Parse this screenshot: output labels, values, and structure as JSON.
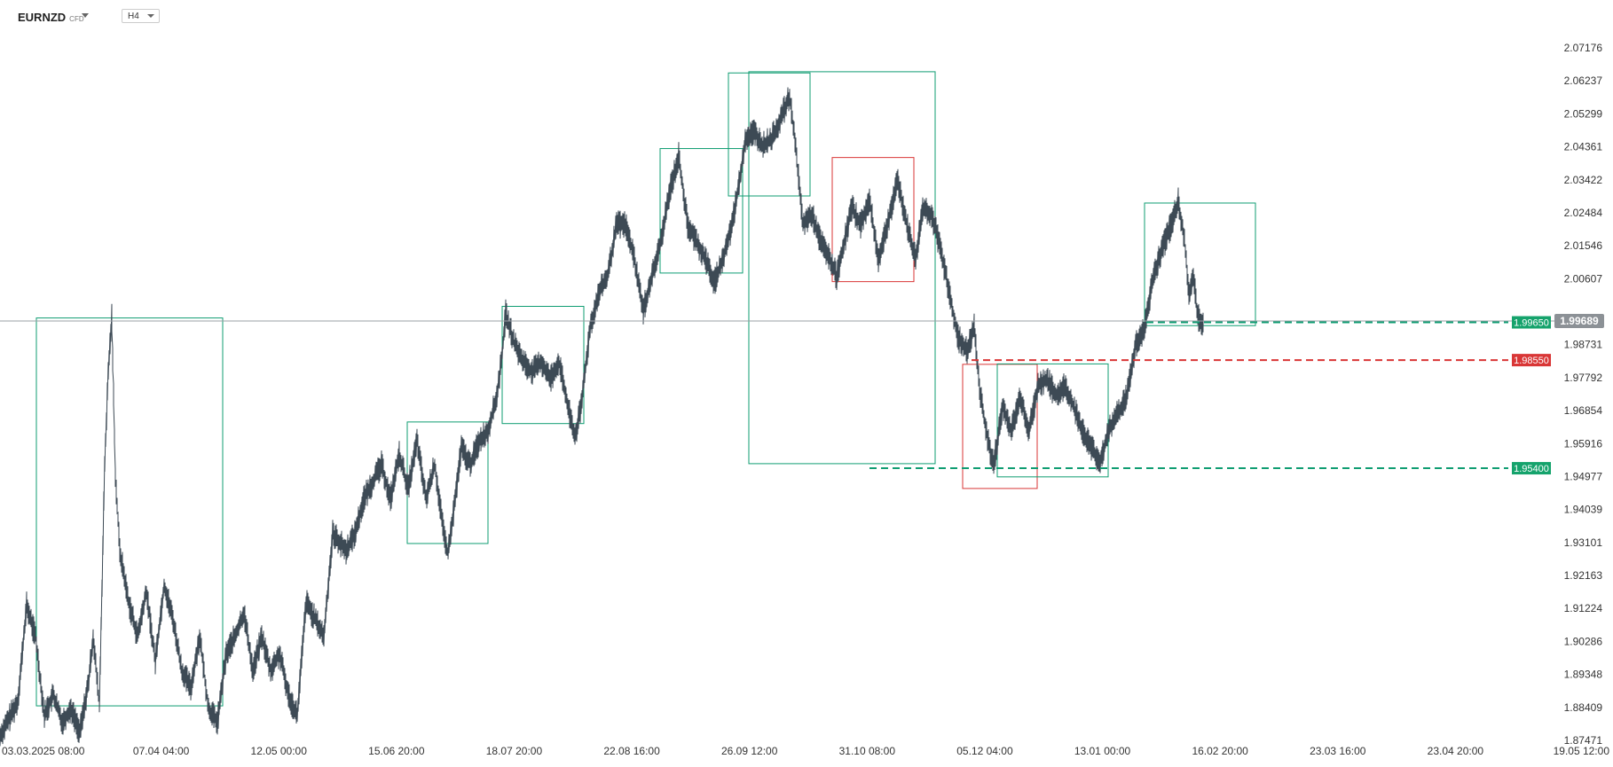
{
  "toolbar": {
    "symbol": "EURNZD",
    "symbol_type": "CFD",
    "timeframe": "H4"
  },
  "colors": {
    "candle": "#3d4a55",
    "green": "#0f9d72",
    "green_badge": "#15a36c",
    "red": "#d93636",
    "current_line": "#9aa0a6",
    "current_badge": "#8c9196"
  },
  "chart_data": {
    "type": "line",
    "ylim": [
      1.87471,
      2.07646
    ],
    "y_ticks": [
      "2.07176",
      "2.06237",
      "2.05299",
      "2.04361",
      "2.03422",
      "2.02484",
      "2.01546",
      "2.00607",
      "1.99689",
      "1.98731",
      "1.97792",
      "1.96854",
      "1.95916",
      "1.94977",
      "1.94039",
      "1.93101",
      "1.92163",
      "1.91224",
      "1.90286",
      "1.89348",
      "1.88409",
      "1.87471"
    ],
    "x_ticks": [
      "03.03.2025 08:00",
      "07.04 04:00",
      "12.05 00:00",
      "15.06 20:00",
      "18.07 20:00",
      "22.08 16:00",
      "26.09 12:00",
      "31.10 08:00",
      "05.12 04:00",
      "13.01 00:00",
      "16.02 20:00",
      "23.03 16:00",
      "23.04 20:00",
      "19.05 12:00"
    ],
    "current_price": "1.99689",
    "price_series": [
      [
        0,
        1.876
      ],
      [
        20,
        1.886
      ],
      [
        30,
        1.914
      ],
      [
        40,
        1.905
      ],
      [
        50,
        1.882
      ],
      [
        60,
        1.888
      ],
      [
        70,
        1.88
      ],
      [
        80,
        1.884
      ],
      [
        90,
        1.877
      ],
      [
        100,
        1.892
      ],
      [
        105,
        1.905
      ],
      [
        112,
        1.885
      ],
      [
        118,
        1.955
      ],
      [
        122,
        1.982
      ],
      [
        126,
        1.998
      ],
      [
        130,
        1.952
      ],
      [
        135,
        1.93
      ],
      [
        145,
        1.915
      ],
      [
        155,
        1.905
      ],
      [
        165,
        1.918
      ],
      [
        175,
        1.898
      ],
      [
        185,
        1.92
      ],
      [
        195,
        1.91
      ],
      [
        205,
        1.895
      ],
      [
        215,
        1.89
      ],
      [
        225,
        1.905
      ],
      [
        235,
        1.884
      ],
      [
        245,
        1.88
      ],
      [
        255,
        1.9
      ],
      [
        265,
        1.905
      ],
      [
        275,
        1.912
      ],
      [
        285,
        1.895
      ],
      [
        295,
        1.905
      ],
      [
        305,
        1.895
      ],
      [
        315,
        1.9
      ],
      [
        325,
        1.888
      ],
      [
        335,
        1.882
      ],
      [
        345,
        1.915
      ],
      [
        355,
        1.91
      ],
      [
        365,
        1.905
      ],
      [
        375,
        1.935
      ],
      [
        390,
        1.93
      ],
      [
        400,
        1.935
      ],
      [
        410,
        1.945
      ],
      [
        420,
        1.95
      ],
      [
        430,
        1.955
      ],
      [
        440,
        1.945
      ],
      [
        450,
        1.958
      ],
      [
        460,
        1.948
      ],
      [
        470,
        1.962
      ],
      [
        480,
        1.945
      ],
      [
        490,
        1.955
      ],
      [
        500,
        1.935
      ],
      [
        505,
        1.929
      ],
      [
        512,
        1.943
      ],
      [
        520,
        1.96
      ],
      [
        530,
        1.955
      ],
      [
        540,
        1.962
      ],
      [
        550,
        1.965
      ],
      [
        560,
        1.975
      ],
      [
        565,
        1.985
      ],
      [
        570,
        1.999
      ],
      [
        580,
        1.99
      ],
      [
        590,
        1.985
      ],
      [
        600,
        1.982
      ],
      [
        610,
        1.985
      ],
      [
        620,
        1.98
      ],
      [
        630,
        1.985
      ],
      [
        640,
        1.972
      ],
      [
        648,
        1.963
      ],
      [
        655,
        1.972
      ],
      [
        665,
        1.995
      ],
      [
        675,
        2.005
      ],
      [
        685,
        2.01
      ],
      [
        695,
        2.025
      ],
      [
        705,
        2.025
      ],
      [
        715,
        2.015
      ],
      [
        725,
        2.0
      ],
      [
        735,
        2.01
      ],
      [
        745,
        2.02
      ],
      [
        755,
        2.035
      ],
      [
        765,
        2.045
      ],
      [
        775,
        2.025
      ],
      [
        785,
        2.02
      ],
      [
        795,
        2.015
      ],
      [
        805,
        2.008
      ],
      [
        815,
        2.015
      ],
      [
        825,
        2.025
      ],
      [
        835,
        2.04
      ],
      [
        840,
        2.05
      ],
      [
        850,
        2.052
      ],
      [
        860,
        2.048
      ],
      [
        870,
        2.05
      ],
      [
        880,
        2.056
      ],
      [
        890,
        2.062
      ],
      [
        895,
        2.052
      ],
      [
        905,
        2.025
      ],
      [
        915,
        2.028
      ],
      [
        925,
        2.02
      ],
      [
        935,
        2.015
      ],
      [
        943,
        2.01
      ],
      [
        950,
        2.018
      ],
      [
        960,
        2.03
      ],
      [
        970,
        2.025
      ],
      [
        980,
        2.032
      ],
      [
        990,
        2.015
      ],
      [
        1000,
        2.025
      ],
      [
        1012,
        2.038
      ],
      [
        1022,
        2.025
      ],
      [
        1032,
        2.015
      ],
      [
        1040,
        2.03
      ],
      [
        1050,
        2.028
      ],
      [
        1060,
        2.018
      ],
      [
        1070,
        2.005
      ],
      [
        1080,
        1.992
      ],
      [
        1090,
        1.988
      ],
      [
        1098,
        1.995
      ],
      [
        1105,
        1.975
      ],
      [
        1115,
        1.96
      ],
      [
        1120,
        1.955
      ],
      [
        1130,
        1.972
      ],
      [
        1140,
        1.965
      ],
      [
        1150,
        1.975
      ],
      [
        1160,
        1.965
      ],
      [
        1170,
        1.978
      ],
      [
        1180,
        1.98
      ],
      [
        1190,
        1.975
      ],
      [
        1200,
        1.978
      ],
      [
        1210,
        1.972
      ],
      [
        1220,
        1.965
      ],
      [
        1230,
        1.96
      ],
      [
        1240,
        1.956
      ],
      [
        1250,
        1.965
      ],
      [
        1260,
        1.97
      ],
      [
        1270,
        1.975
      ],
      [
        1280,
        1.99
      ],
      [
        1290,
        1.995
      ],
      [
        1300,
        2.01
      ],
      [
        1310,
        2.018
      ],
      [
        1320,
        2.025
      ],
      [
        1328,
        2.032
      ],
      [
        1335,
        2.02
      ],
      [
        1340,
        2.005
      ],
      [
        1345,
        2.01
      ],
      [
        1350,
        1.998
      ],
      [
        1357,
        1.996
      ]
    ],
    "boxes": [
      {
        "x0": 41,
        "x1": 251,
        "y_top": 1.99778,
        "y_bottom": 1.88477,
        "color": "green"
      },
      {
        "x0": 459,
        "x1": 550,
        "y_top": 1.96748,
        "y_bottom": 1.93207,
        "color": "green"
      },
      {
        "x0": 566,
        "x1": 658,
        "y_top": 2.00116,
        "y_bottom": 1.96701,
        "color": "green"
      },
      {
        "x0": 744,
        "x1": 837,
        "y_top": 2.04713,
        "y_bottom": 2.01087,
        "color": "green"
      },
      {
        "x0": 821,
        "x1": 913,
        "y_top": 2.06916,
        "y_bottom": 2.03332,
        "color": "green"
      },
      {
        "x0": 844,
        "x1": 1054,
        "y_top": 2.06951,
        "y_bottom": 1.95533,
        "color": "green"
      },
      {
        "x0": 938,
        "x1": 1030,
        "y_top": 2.04452,
        "y_bottom": 2.00836,
        "color": "red"
      },
      {
        "x0": 1085,
        "x1": 1169,
        "y_top": 1.98427,
        "y_bottom": 1.9481,
        "color": "red"
      },
      {
        "x0": 1124,
        "x1": 1249,
        "y_top": 1.98439,
        "y_bottom": 1.95148,
        "color": "green"
      },
      {
        "x0": 1290,
        "x1": 1415,
        "y_top": 2.03126,
        "y_bottom": 1.99554,
        "color": "green"
      }
    ],
    "levels": [
      {
        "value": 1.9965,
        "label": "1.99650",
        "color": "green",
        "x_start": 1292
      },
      {
        "value": 1.9855,
        "label": "1.98550",
        "color": "red",
        "x_start": 1095
      },
      {
        "value": 1.954,
        "label": "1.95400",
        "color": "green",
        "x_start": 980
      }
    ]
  }
}
